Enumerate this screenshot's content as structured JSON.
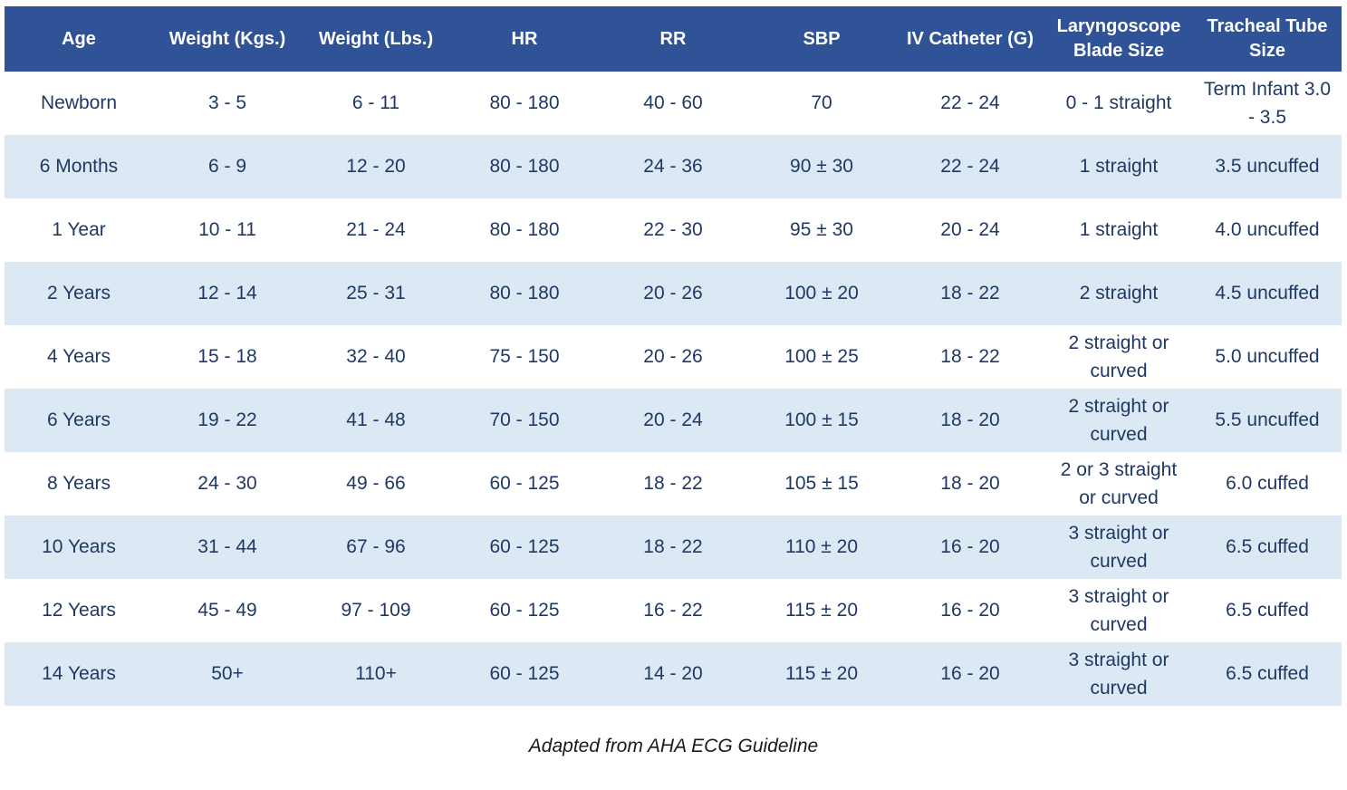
{
  "colors": {
    "header_bg": "#2F5396",
    "header_text": "#FFFFFF",
    "row_bg": "#FFFFFF",
    "row_alt_bg": "#DCE9F5",
    "body_text": "#1F3864",
    "footer_text": "#1A1A1A"
  },
  "table": {
    "columns": [
      "Age",
      "Weight (Kgs.)",
      "Weight (Lbs.)",
      "HR",
      "RR",
      "SBP",
      "IV Catheter (G)",
      "Laryngoscope Blade Size",
      "Tracheal Tube Size"
    ],
    "rows": [
      {
        "cells": [
          "Newborn",
          "3 - 5",
          "6 - 11",
          "80 - 180",
          "40 - 60",
          "70",
          "22 - 24",
          "0 - 1 straight",
          "Term Infant 3.0 - 3.5"
        ]
      },
      {
        "cells": [
          "6 Months",
          "6 - 9",
          "12 - 20",
          "80 - 180",
          "24 - 36",
          "90 ± 30",
          "22 - 24",
          "1 straight",
          "3.5 uncuffed"
        ]
      },
      {
        "cells": [
          "1 Year",
          "10 - 11",
          "21 - 24",
          "80 - 180",
          "22 - 30",
          "95 ± 30",
          "20 - 24",
          "1 straight",
          "4.0 uncuffed"
        ]
      },
      {
        "cells": [
          "2 Years",
          "12 - 14",
          "25 - 31",
          "80 - 180",
          "20 - 26",
          "100 ± 20",
          "18 - 22",
          "2 straight",
          "4.5 uncuffed"
        ]
      },
      {
        "cells": [
          "4 Years",
          "15 - 18",
          "32 - 40",
          "75 - 150",
          "20 - 26",
          "100 ± 25",
          "18 - 22",
          "2 straight or curved",
          "5.0 uncuffed"
        ]
      },
      {
        "cells": [
          "6 Years",
          "19 - 22",
          "41 - 48",
          "70 - 150",
          "20 - 24",
          "100 ± 15",
          "18 - 20",
          "2 straight or curved",
          "5.5 uncuffed"
        ]
      },
      {
        "cells": [
          "8 Years",
          "24 - 30",
          "49 - 66",
          "60 - 125",
          "18 - 22",
          "105 ± 15",
          "18 - 20",
          "2 or 3 straight or curved",
          "6.0 cuffed"
        ]
      },
      {
        "cells": [
          "10 Years",
          "31 - 44",
          "67 - 96",
          "60 - 125",
          "18 - 22",
          "110 ± 20",
          "16 - 20",
          "3 straight or curved",
          "6.5 cuffed"
        ]
      },
      {
        "cells": [
          "12 Years",
          "45 - 49",
          "97 - 109",
          "60 - 125",
          "16 - 22",
          "115 ± 20",
          "16 - 20",
          "3 straight or curved",
          "6.5 cuffed"
        ]
      },
      {
        "cells": [
          "14 Years",
          "50+",
          "110+",
          "60 - 125",
          "14 - 20",
          "115 ± 20",
          "16 - 20",
          "3 straight or curved",
          "6.5 cuffed"
        ]
      }
    ]
  },
  "footer": {
    "note": "Adapted from AHA ECG Guideline"
  }
}
